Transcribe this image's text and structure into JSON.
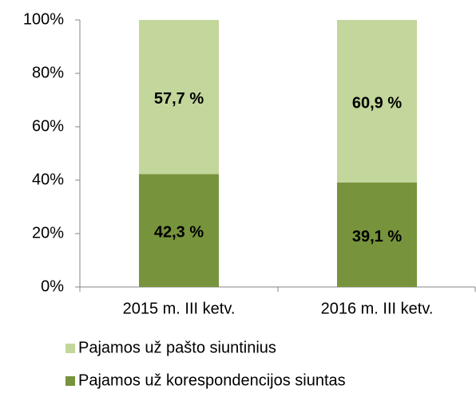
{
  "chart_data": {
    "type": "stacked_bar",
    "categories": [
      "2015 m. III ketv.",
      "2016 m. III ketv."
    ],
    "series": [
      {
        "name": "Pajamos už korespondencijos siuntas",
        "color": "#77933c",
        "values": [
          42.3,
          39.1
        ],
        "value_labels": [
          "42,3 %",
          "39,1 %"
        ]
      },
      {
        "name": "Pajamos už pašto siuntinius",
        "color": "#c3d69b",
        "values": [
          57.7,
          60.9
        ],
        "value_labels": [
          "57,7 %",
          "60,9 %"
        ]
      }
    ],
    "ylim": [
      0,
      100
    ],
    "yticks": [
      {
        "value": 0,
        "label": "0%"
      },
      {
        "value": 20,
        "label": "20%"
      },
      {
        "value": 40,
        "label": "40%"
      },
      {
        "value": 60,
        "label": "60%"
      },
      {
        "value": 80,
        "label": "80%"
      },
      {
        "value": 100,
        "label": "100%"
      }
    ],
    "grid": false,
    "legend": "bottom"
  }
}
